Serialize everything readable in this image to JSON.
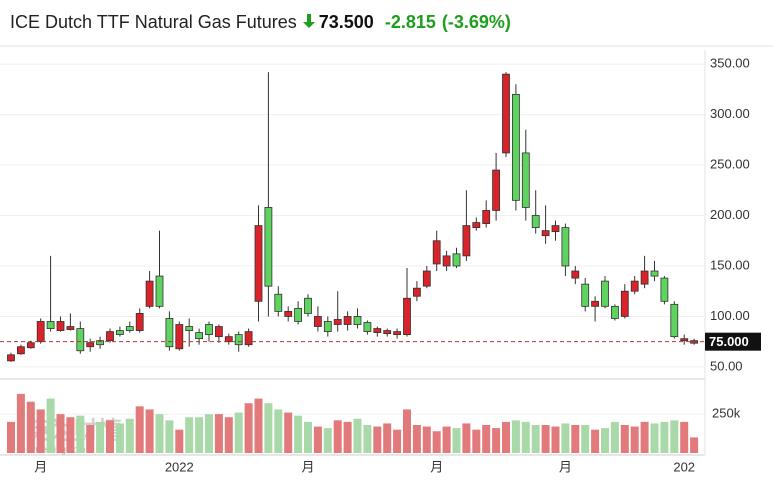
{
  "header": {
    "title": "ICE Dutch TTF Natural Gas Futures",
    "price": "73.500",
    "change": "-2.815",
    "change_pct": "(-3.69%)"
  },
  "watermark": {
    "text": "英为财情",
    "sub": "Investing.com"
  },
  "chart_data": {
    "type": "candlestick",
    "categories": [
      null,
      null,
      null,
      "月",
      null,
      null,
      null,
      null,
      null,
      null,
      null,
      null,
      null,
      null,
      null,
      null,
      null,
      "2022",
      null,
      null,
      null,
      null,
      null,
      null,
      null,
      null,
      null,
      null,
      null,
      null,
      "月",
      null,
      null,
      null,
      null,
      null,
      null,
      null,
      null,
      null,
      null,
      null,
      null,
      "月",
      null,
      null,
      null,
      null,
      null,
      null,
      null,
      null,
      null,
      null,
      null,
      null,
      "月",
      null,
      null,
      null,
      null,
      null,
      null,
      null,
      null,
      null,
      null,
      null,
      "202",
      null
    ],
    "open": [
      62,
      70,
      74,
      95,
      88,
      95,
      90,
      66,
      74,
      72,
      85,
      82,
      86,
      103,
      135,
      110,
      70,
      92,
      86,
      78,
      82,
      90,
      80,
      72,
      85,
      190,
      130,
      105,
      105,
      95,
      103,
      100,
      85,
      97,
      100,
      92,
      85,
      88,
      86,
      85,
      118,
      128,
      145,
      175,
      160,
      150,
      190,
      193,
      205,
      245,
      340,
      215,
      208,
      188,
      185,
      190,
      150,
      145,
      110,
      115,
      110,
      98,
      125,
      135,
      145,
      140,
      115,
      80,
      78,
      76
    ],
    "high": [
      64,
      72,
      76,
      98,
      160,
      100,
      103,
      95,
      78,
      80,
      88,
      90,
      95,
      108,
      145,
      185,
      105,
      95,
      98,
      88,
      95,
      92,
      83,
      85,
      88,
      210,
      342,
      130,
      110,
      115,
      122,
      110,
      100,
      125,
      105,
      108,
      96,
      90,
      88,
      88,
      148,
      135,
      150,
      185,
      165,
      168,
      225,
      198,
      215,
      262,
      342,
      330,
      285,
      225,
      210,
      195,
      192,
      150,
      138,
      120,
      140,
      112,
      132,
      140,
      160,
      155,
      140,
      115,
      82,
      78
    ],
    "low": [
      55,
      62,
      68,
      73,
      85,
      85,
      86,
      63,
      65,
      68,
      74,
      80,
      84,
      84,
      108,
      108,
      66,
      66,
      70,
      72,
      75,
      74,
      72,
      65,
      70,
      95,
      100,
      100,
      95,
      92,
      100,
      85,
      80,
      85,
      86,
      88,
      82,
      80,
      80,
      78,
      80,
      115,
      128,
      145,
      145,
      148,
      155,
      185,
      188,
      195,
      258,
      205,
      195,
      182,
      172,
      175,
      140,
      132,
      105,
      95,
      108,
      96,
      98,
      122,
      128,
      135,
      112,
      78,
      72,
      72
    ],
    "close": [
      56,
      63,
      69,
      75,
      95,
      86,
      87,
      88,
      70,
      76,
      76,
      86,
      90,
      86,
      110,
      140,
      98,
      68,
      90,
      84,
      92,
      80,
      75,
      82,
      72,
      115,
      208,
      122,
      100,
      108,
      118,
      90,
      95,
      92,
      92,
      100,
      94,
      84,
      83,
      82,
      82,
      120,
      130,
      152,
      150,
      162,
      160,
      188,
      192,
      205,
      262,
      320,
      262,
      200,
      180,
      184,
      188,
      138,
      132,
      110,
      135,
      110,
      100,
      125,
      132,
      145,
      138,
      112,
      76,
      73.5
    ],
    "ylim": [
      40,
      360
    ],
    "yticks": [
      {
        "value": 50,
        "label": "50.00"
      },
      {
        "value": 100,
        "label": "100.00"
      },
      {
        "value": 150,
        "label": "150.00"
      },
      {
        "value": 200,
        "label": "200.00"
      },
      {
        "value": 250,
        "label": "250.00"
      },
      {
        "value": 300,
        "label": "300.00"
      },
      {
        "value": 350,
        "label": "350.00"
      }
    ],
    "price_line": {
      "value": 75,
      "label": "75.000"
    },
    "up_color": "#5fd35f",
    "down_color": "#d8232a",
    "volume": {
      "values": [
        200000,
        380000,
        330000,
        280000,
        350000,
        250000,
        230000,
        240000,
        180000,
        200000,
        210000,
        190000,
        220000,
        300000,
        280000,
        250000,
        210000,
        150000,
        230000,
        230000,
        250000,
        250000,
        230000,
        260000,
        320000,
        350000,
        320000,
        280000,
        260000,
        240000,
        200000,
        170000,
        160000,
        210000,
        200000,
        220000,
        180000,
        170000,
        190000,
        150000,
        280000,
        180000,
        170000,
        140000,
        170000,
        160000,
        190000,
        150000,
        180000,
        160000,
        200000,
        210000,
        200000,
        180000,
        180000,
        170000,
        190000,
        180000,
        180000,
        150000,
        160000,
        200000,
        180000,
        170000,
        200000,
        190000,
        200000,
        210000,
        200000,
        100000
      ],
      "ylim": [
        0,
        450000
      ],
      "yticks": [
        {
          "value": 250000,
          "label": "250k"
        }
      ],
      "up_color": "#a9d9a9",
      "down_color": "#e27a7c"
    }
  }
}
